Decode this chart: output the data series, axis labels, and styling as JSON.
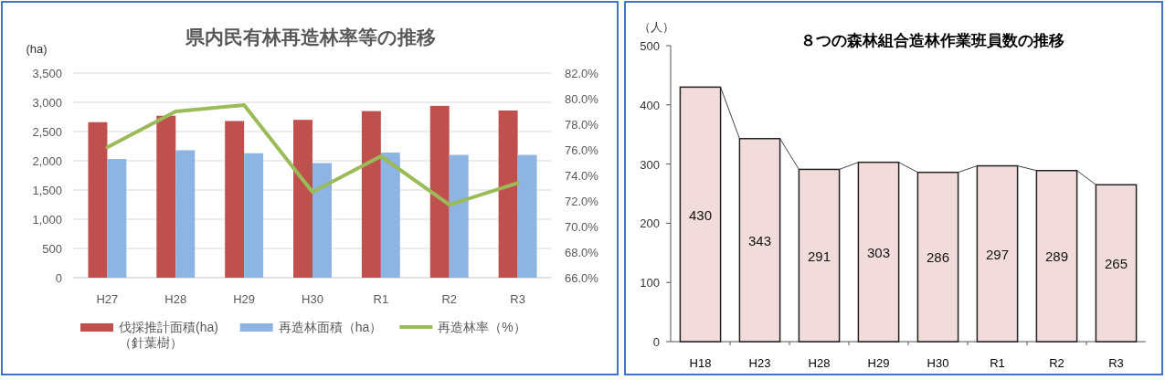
{
  "chart_data": [
    {
      "type": "bar",
      "title": "県内民有林再造林率等の推移",
      "ylabel": "(ha)",
      "categories": [
        "H27",
        "H28",
        "H29",
        "H30",
        "R1",
        "R2",
        "R3"
      ],
      "series": [
        {
          "name": "伐採推計面積(ha)\n（針葉樹）",
          "color": "#c0504d",
          "values": [
            2660,
            2770,
            2680,
            2700,
            2850,
            2940,
            2860
          ]
        },
        {
          "name": "再造林面積（ha）",
          "color": "#8db4e2",
          "values": [
            2030,
            2180,
            2130,
            1960,
            2140,
            2100,
            2100
          ]
        },
        {
          "name": "再造林率（%）",
          "type": "line",
          "axis": "y2",
          "color": "#9bbb59",
          "values": [
            76.2,
            79.0,
            79.5,
            72.7,
            75.5,
            71.7,
            73.4
          ]
        }
      ],
      "ylim": [
        0,
        3500
      ],
      "yticks": [
        {
          "value": 0,
          "label": "0"
        },
        {
          "value": 500,
          "label": "500"
        },
        {
          "value": 1000,
          "label": "1,000"
        },
        {
          "value": 1500,
          "label": "1,500"
        },
        {
          "value": 2000,
          "label": "2,000"
        },
        {
          "value": 2500,
          "label": "2,500"
        },
        {
          "value": 3000,
          "label": "3,000"
        },
        {
          "value": 3500,
          "label": "3,500"
        }
      ],
      "y2lim": [
        66,
        82
      ],
      "y2ticks": [
        {
          "value": 66,
          "label": "66.0%"
        },
        {
          "value": 68,
          "label": "68.0%"
        },
        {
          "value": 70,
          "label": "70.0%"
        },
        {
          "value": 72,
          "label": "72.0%"
        },
        {
          "value": 74,
          "label": "74.0%"
        },
        {
          "value": 76,
          "label": "76.0%"
        },
        {
          "value": 78,
          "label": "78.0%"
        },
        {
          "value": 80,
          "label": "80.0%"
        },
        {
          "value": 82,
          "label": "82.0%"
        }
      ],
      "grid": "y",
      "legend": "bottom",
      "marker": "none"
    },
    {
      "type": "bar",
      "title": "８つの森林組合造林作業班員数の推移",
      "ylabel": "（人）",
      "categories": [
        "H18",
        "H23",
        "H28",
        "H29",
        "H30",
        "R1",
        "R2",
        "R3"
      ],
      "values": [
        430,
        343,
        291,
        303,
        286,
        297,
        289,
        265
      ],
      "color": "#f2dcdb",
      "ylim": [
        0,
        500
      ],
      "yticks": [
        0,
        100,
        200,
        300,
        400,
        500
      ],
      "data_labels": true
    }
  ]
}
